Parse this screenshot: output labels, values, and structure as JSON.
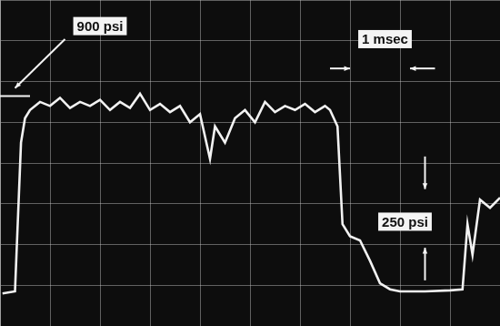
{
  "chart_data": {
    "type": "line",
    "annotations": [
      "900 psi",
      "1 msec",
      "250 psi"
    ],
    "x": [
      0.05,
      0.3,
      0.42,
      0.5,
      0.6,
      0.8,
      1.0,
      1.2,
      1.4,
      1.6,
      1.8,
      2.0,
      2.2,
      2.4,
      2.6,
      2.8,
      3.0,
      3.2,
      3.4,
      3.6,
      3.8,
      4.0,
      4.2,
      4.3,
      4.5,
      4.7,
      4.9,
      5.1,
      5.3,
      5.5,
      5.7,
      5.9,
      6.1,
      6.3,
      6.5,
      6.6,
      6.75,
      6.85,
      7.0,
      7.2,
      7.4,
      7.6,
      7.8,
      8.0,
      8.5,
      9.0,
      9.25,
      9.35,
      9.45,
      9.6,
      9.8,
      10.0
    ],
    "values": [
      -40,
      -30,
      700,
      820,
      860,
      900,
      880,
      920,
      870,
      900,
      880,
      910,
      860,
      900,
      870,
      940,
      860,
      890,
      850,
      880,
      800,
      840,
      620,
      780,
      700,
      820,
      860,
      800,
      900,
      850,
      880,
      860,
      890,
      850,
      880,
      860,
      780,
      300,
      240,
      220,
      120,
      10,
      -20,
      -30,
      -30,
      -25,
      -20,
      300,
      150,
      420,
      380,
      430
    ],
    "color": "#f2f2f2",
    "xlim": [
      0,
      10
    ],
    "xticks": [
      0,
      1,
      2,
      3,
      4,
      5,
      6,
      7,
      8,
      9,
      10
    ],
    "ylim": [
      -200,
      1400
    ],
    "yticks": [
      -200,
      0,
      200,
      400,
      600,
      800,
      1000,
      1200,
      1400
    ],
    "grid": true,
    "tick_labels": false
  }
}
